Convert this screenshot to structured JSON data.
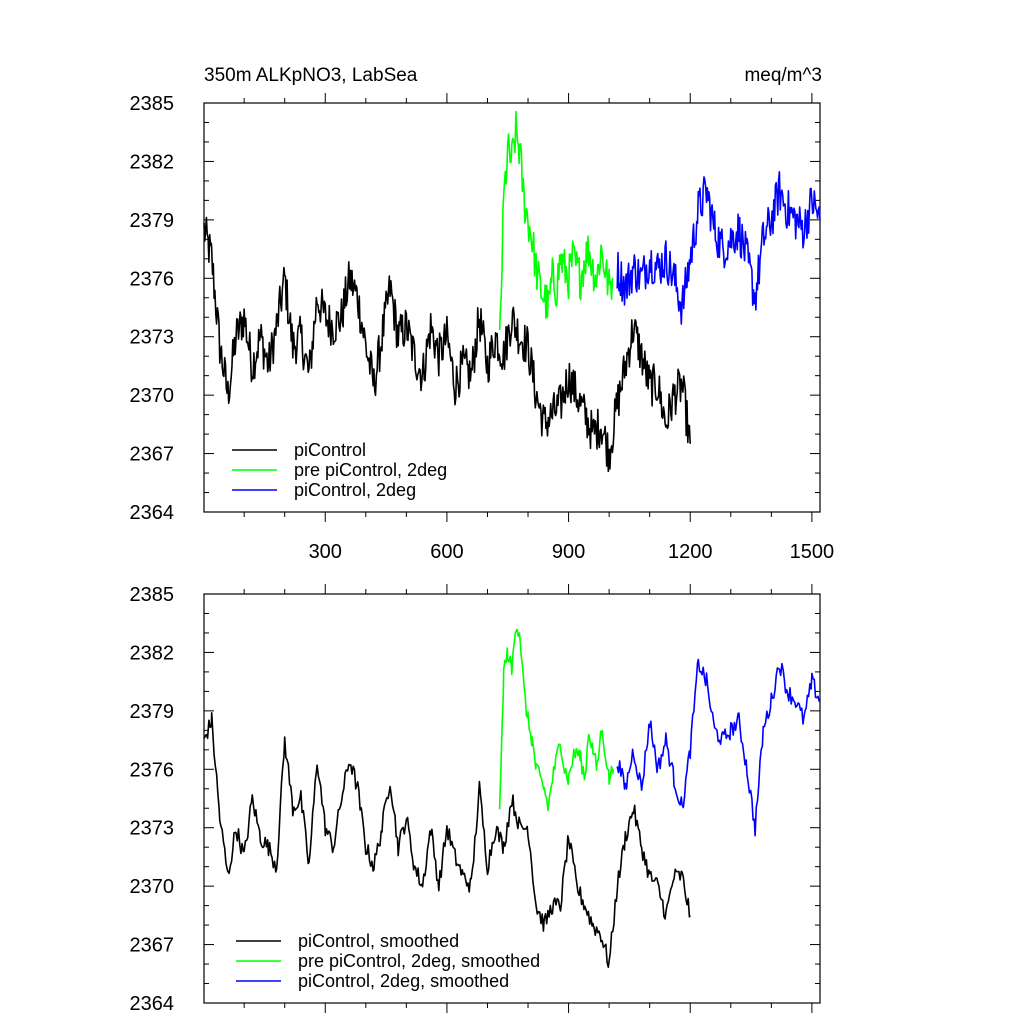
{
  "chart_data": [
    {
      "type": "line",
      "title": "350m ALKpNO3, LabSea",
      "units": "meq/m^3",
      "xlim": [
        1,
        1520
      ],
      "ylim": [
        2364,
        2385
      ],
      "xticks": [
        300,
        600,
        900,
        1200,
        1500
      ],
      "yticks": [
        2364,
        2367,
        2370,
        2373,
        2376,
        2379,
        2382,
        2385
      ],
      "show_xtick_labels": true,
      "grid": false,
      "legend_position": "bottom-left",
      "series": [
        {
          "name": "piControl",
          "color": "#000000",
          "x": [
            1,
            20,
            40,
            60,
            80,
            100,
            120,
            140,
            160,
            180,
            200,
            220,
            240,
            260,
            280,
            300,
            320,
            340,
            360,
            380,
            400,
            420,
            440,
            460,
            480,
            500,
            520,
            540,
            560,
            580,
            600,
            620,
            640,
            660,
            680,
            700,
            720,
            740,
            760,
            780,
            800,
            820,
            840,
            860,
            880,
            900,
            920,
            940,
            960,
            980,
            1000,
            1020,
            1040,
            1060,
            1080,
            1100,
            1120,
            1140,
            1160,
            1180,
            1200
          ],
          "y": [
            2378.5,
            2377.0,
            2372.5,
            2370.0,
            2373.0,
            2374.0,
            2371.5,
            2373.0,
            2371.5,
            2373.5,
            2376.0,
            2372.5,
            2373.0,
            2371.0,
            2375.0,
            2374.0,
            2373.5,
            2374.0,
            2376.0,
            2375.0,
            2372.5,
            2370.5,
            2373.0,
            2375.5,
            2373.0,
            2373.5,
            2372.0,
            2371.0,
            2373.5,
            2372.0,
            2373.0,
            2370.5,
            2371.5,
            2371.0,
            2374.0,
            2371.5,
            2373.0,
            2372.0,
            2374.0,
            2373.0,
            2372.5,
            2370.0,
            2368.5,
            2369.0,
            2369.5,
            2371.0,
            2370.0,
            2369.0,
            2368.0,
            2368.5,
            2367.0,
            2369.5,
            2371.5,
            2373.5,
            2372.0,
            2370.5,
            2370.5,
            2368.5,
            2370.0,
            2370.5,
            2367.5
          ]
        },
        {
          "name": "pre piControl, 2deg",
          "color": "#00ff00",
          "x": [
            730,
            740,
            750,
            760,
            770,
            780,
            790,
            800,
            810,
            820,
            830,
            840,
            850,
            860,
            870,
            880,
            890,
            900,
            910,
            920,
            930,
            940,
            950,
            960,
            970,
            980,
            990,
            1000,
            1010
          ],
          "y": [
            2372.5,
            2380.0,
            2382.5,
            2382.0,
            2383.5,
            2382.5,
            2380.0,
            2379.0,
            2378.0,
            2376.5,
            2375.5,
            2375.0,
            2374.5,
            2376.0,
            2375.5,
            2377.0,
            2376.5,
            2376.0,
            2377.0,
            2376.5,
            2376.0,
            2377.0,
            2377.5,
            2376.5,
            2376.0,
            2377.5,
            2376.5,
            2375.5,
            2376.0
          ]
        },
        {
          "name": "piControl, 2deg",
          "color": "#0000ff",
          "x": [
            1020,
            1040,
            1060,
            1080,
            1100,
            1120,
            1140,
            1160,
            1180,
            1200,
            1220,
            1240,
            1260,
            1280,
            1300,
            1320,
            1340,
            1360,
            1380,
            1400,
            1420,
            1440,
            1460,
            1480,
            1500,
            1520
          ],
          "y": [
            2376.5,
            2375.5,
            2376.5,
            2376.0,
            2377.0,
            2376.5,
            2377.0,
            2376.0,
            2374.5,
            2377.0,
            2379.5,
            2380.5,
            2378.5,
            2377.5,
            2378.0,
            2378.5,
            2377.0,
            2375.0,
            2378.0,
            2379.0,
            2380.5,
            2379.5,
            2379.0,
            2378.5,
            2380.0,
            2379.0
          ]
        }
      ]
    },
    {
      "type": "line",
      "title": "",
      "units": "",
      "xlim": [
        1,
        1520
      ],
      "ylim": [
        2364,
        2385
      ],
      "xticks": [
        300,
        600,
        900,
        1200,
        1500
      ],
      "yticks": [
        2364,
        2367,
        2370,
        2373,
        2376,
        2379,
        2382,
        2385
      ],
      "show_xtick_labels": false,
      "grid": false,
      "legend_position": "bottom-left",
      "series": [
        {
          "name": "piControl, smoothed",
          "color": "#000000",
          "x": [
            1,
            20,
            40,
            60,
            80,
            100,
            120,
            140,
            160,
            180,
            200,
            220,
            240,
            260,
            280,
            300,
            320,
            340,
            360,
            380,
            400,
            420,
            440,
            460,
            480,
            500,
            520,
            540,
            560,
            580,
            600,
            620,
            640,
            660,
            680,
            700,
            720,
            740,
            760,
            780,
            800,
            820,
            840,
            860,
            880,
            900,
            920,
            940,
            960,
            980,
            1000,
            1020,
            1040,
            1060,
            1080,
            1100,
            1120,
            1140,
            1160,
            1180,
            1200
          ],
          "y": [
            2377.5,
            2378.5,
            2373.5,
            2370.5,
            2373.0,
            2371.5,
            2374.5,
            2372.5,
            2372.0,
            2371.0,
            2377.5,
            2374.0,
            2374.5,
            2371.0,
            2376.5,
            2373.0,
            2372.0,
            2374.5,
            2376.5,
            2375.0,
            2372.0,
            2371.0,
            2373.0,
            2375.5,
            2372.0,
            2373.5,
            2371.0,
            2370.0,
            2373.0,
            2370.0,
            2373.0,
            2371.5,
            2370.5,
            2370.0,
            2375.0,
            2371.0,
            2373.0,
            2372.0,
            2374.5,
            2373.0,
            2373.0,
            2369.0,
            2368.0,
            2369.0,
            2369.0,
            2372.5,
            2370.0,
            2369.0,
            2368.0,
            2367.5,
            2366.0,
            2370.0,
            2372.5,
            2374.0,
            2372.0,
            2370.5,
            2370.0,
            2368.5,
            2370.5,
            2370.5,
            2368.5
          ]
        },
        {
          "name": "pre piControl, 2deg, smoothed",
          "color": "#00ff00",
          "x": [
            730,
            740,
            750,
            760,
            770,
            780,
            790,
            800,
            810,
            820,
            830,
            840,
            850,
            860,
            870,
            880,
            890,
            900,
            910,
            920,
            930,
            940,
            950,
            960,
            970,
            980,
            990,
            1000,
            1010
          ],
          "y": [
            2373.5,
            2381.0,
            2382.0,
            2381.0,
            2383.5,
            2383.0,
            2380.0,
            2378.5,
            2377.5,
            2376.0,
            2375.5,
            2375.0,
            2374.0,
            2375.5,
            2376.5,
            2377.5,
            2376.0,
            2375.5,
            2376.5,
            2377.0,
            2376.5,
            2375.5,
            2378.0,
            2377.0,
            2376.0,
            2378.0,
            2377.0,
            2375.5,
            2376.0
          ]
        },
        {
          "name": "piControl, 2deg, smoothed",
          "color": "#0000ff",
          "x": [
            1020,
            1040,
            1060,
            1080,
            1100,
            1120,
            1140,
            1160,
            1180,
            1200,
            1220,
            1240,
            1260,
            1280,
            1300,
            1320,
            1340,
            1360,
            1380,
            1400,
            1420,
            1440,
            1460,
            1480,
            1500,
            1520
          ],
          "y": [
            2376.5,
            2375.0,
            2377.0,
            2375.0,
            2378.5,
            2376.0,
            2377.5,
            2375.5,
            2374.0,
            2377.0,
            2381.5,
            2380.5,
            2378.0,
            2377.5,
            2378.0,
            2378.5,
            2376.0,
            2373.0,
            2378.0,
            2379.5,
            2381.5,
            2380.0,
            2379.5,
            2378.5,
            2380.5,
            2379.5
          ]
        }
      ]
    }
  ]
}
